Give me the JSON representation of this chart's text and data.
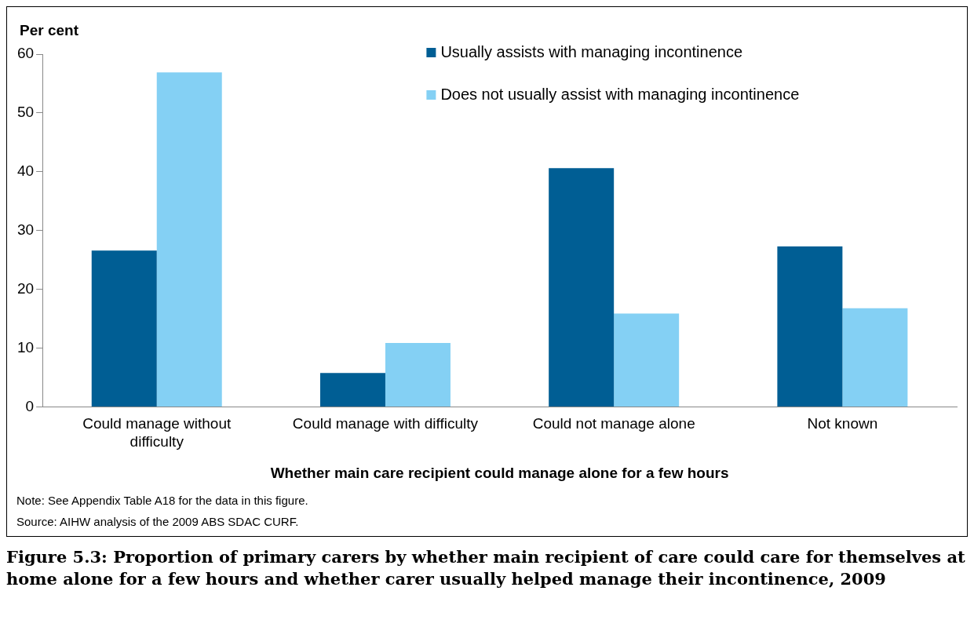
{
  "chart_data": {
    "type": "bar",
    "title": "Figure 5.3: Proportion of primary carers by whether main recipient of care could care for themselves at home alone for a few hours and whether carer usually helped manage their incontinence, 2009",
    "xlabel": "Whether main care recipient could manage alone for a few hours",
    "ylabel": "Per cent",
    "categories": [
      "Could manage without difficulty",
      "Could manage with difficulty",
      "Could not manage alone",
      "Not known"
    ],
    "series": [
      {
        "name": "Usually assists with managing incontinence",
        "color": "#005e94",
        "values": [
          26.6,
          5.8,
          40.6,
          27.3
        ]
      },
      {
        "name": "Does not usually assist with managing incontinence",
        "color": "#84d0f4",
        "values": [
          56.9,
          10.9,
          15.9,
          16.8
        ]
      }
    ],
    "ylim": [
      0,
      60
    ],
    "yticks": [
      0,
      10,
      20,
      30,
      40,
      50,
      60
    ],
    "grid": false,
    "legend": "top right",
    "annotations": [
      "Note: See Appendix Table A18 for the data in this figure.",
      "Source: AIHW analysis of the 2009 ABS SDAC CURF."
    ]
  }
}
